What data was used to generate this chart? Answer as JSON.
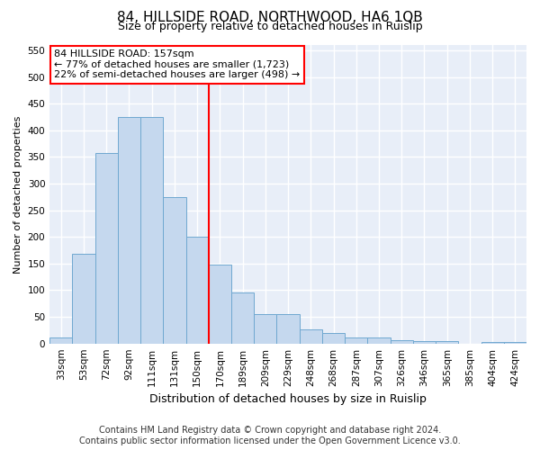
{
  "title": "84, HILLSIDE ROAD, NORTHWOOD, HA6 1QB",
  "subtitle": "Size of property relative to detached houses in Ruislip",
  "xlabel": "Distribution of detached houses by size in Ruislip",
  "ylabel": "Number of detached properties",
  "categories": [
    "33sqm",
    "53sqm",
    "72sqm",
    "92sqm",
    "111sqm",
    "131sqm",
    "150sqm",
    "170sqm",
    "189sqm",
    "209sqm",
    "229sqm",
    "248sqm",
    "268sqm",
    "287sqm",
    "307sqm",
    "326sqm",
    "346sqm",
    "365sqm",
    "385sqm",
    "404sqm",
    "424sqm"
  ],
  "values": [
    12,
    168,
    357,
    425,
    425,
    275,
    200,
    148,
    95,
    55,
    55,
    27,
    20,
    12,
    12,
    6,
    4,
    4,
    0,
    3,
    3
  ],
  "bar_color": "#c5d8ee",
  "bar_edge_color": "#6fa8d0",
  "vline_x_index": 6.5,
  "vline_color": "red",
  "annotation_line1": "84 HILLSIDE ROAD: 157sqm",
  "annotation_line2": "← 77% of detached houses are smaller (1,723)",
  "annotation_line3": "22% of semi-detached houses are larger (498) →",
  "annotation_box_color": "white",
  "annotation_box_edge_color": "red",
  "ylim": [
    0,
    560
  ],
  "yticks": [
    0,
    50,
    100,
    150,
    200,
    250,
    300,
    350,
    400,
    450,
    500,
    550
  ],
  "footnote": "Contains HM Land Registry data © Crown copyright and database right 2024.\nContains public sector information licensed under the Open Government Licence v3.0.",
  "bg_color": "#ffffff",
  "plot_bg_color": "#e8eef8",
  "grid_color": "#ffffff",
  "title_fontsize": 11,
  "subtitle_fontsize": 9,
  "footnote_fontsize": 7,
  "ylabel_fontsize": 8,
  "xlabel_fontsize": 9,
  "tick_fontsize": 7.5,
  "annotation_fontsize": 8
}
